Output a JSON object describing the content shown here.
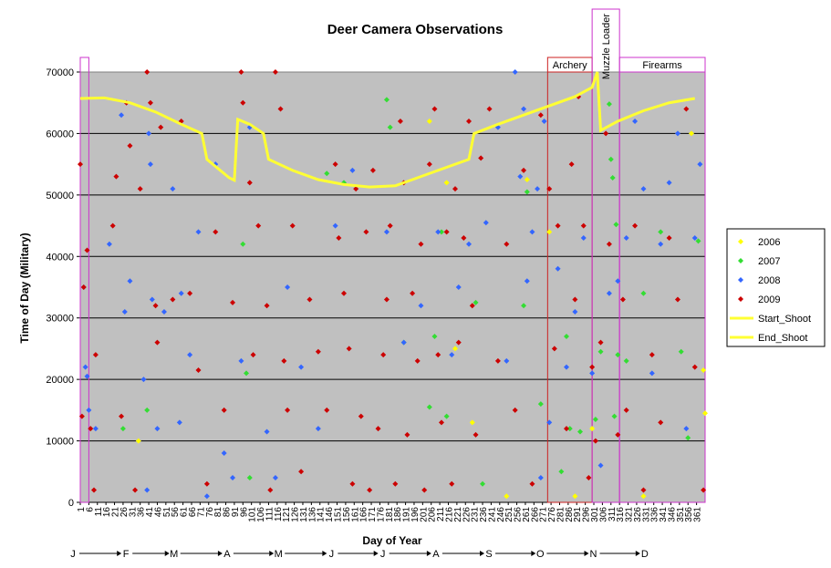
{
  "chart_data": {
    "type": "scatter",
    "title": "Deer Camera Observations",
    "xlabel": "Day of Year",
    "ylabel": "Time of Day (Military)",
    "xlim": [
      1,
      366
    ],
    "ylim": [
      0,
      70000
    ],
    "yticks": [
      0,
      10000,
      20000,
      30000,
      40000,
      50000,
      60000,
      70000
    ],
    "ytick_labels": [
      "0",
      "10000",
      "20000",
      "30000",
      "40000",
      "50000",
      "60000",
      "70000"
    ],
    "xtick_labels": [
      "1",
      "6",
      "11",
      "16",
      "21",
      "26",
      "31",
      "36",
      "41",
      "46",
      "51",
      "56",
      "61",
      "66",
      "71",
      "76",
      "81",
      "86",
      "91",
      "96",
      "101",
      "106",
      "111",
      "116",
      "121",
      "126",
      "131",
      "136",
      "141",
      "146",
      "151",
      "156",
      "161",
      "166",
      "171",
      "176",
      "181",
      "186",
      "191",
      "196",
      "201",
      "206",
      "211",
      "216",
      "221",
      "226",
      "231",
      "236",
      "241",
      "246",
      "251",
      "256",
      "261",
      "266",
      "271",
      "276",
      "281",
      "286",
      "291",
      "296",
      "301",
      "306",
      "311",
      "316",
      "321",
      "326",
      "331",
      "336",
      "341",
      "346",
      "351",
      "356",
      "361"
    ],
    "grid": "horizontal",
    "plot_background": "#c0c0c0",
    "legend_position": "right",
    "months": [
      {
        "label": "J",
        "day": 1
      },
      {
        "label": "F",
        "day": 32
      },
      {
        "label": "M",
        "day": 60
      },
      {
        "label": "A",
        "day": 91
      },
      {
        "label": "M",
        "day": 121
      },
      {
        "label": "J",
        "day": 152
      },
      {
        "label": "J",
        "day": 182
      },
      {
        "label": "A",
        "day": 213
      },
      {
        "label": "S",
        "day": 244
      },
      {
        "label": "O",
        "day": 274
      },
      {
        "label": "N",
        "day": 305
      },
      {
        "label": "D",
        "day": 335
      }
    ],
    "seasons": [
      {
        "label": "",
        "start": 1,
        "end": 6,
        "color": "#cc33cc"
      },
      {
        "label": "Archery",
        "start": 274,
        "end": 300,
        "color": "#cc2222"
      },
      {
        "label": "Muzzle Loader",
        "start": 300,
        "end": 316,
        "color": "#cc33cc",
        "vertical": true
      },
      {
        "label": "Firearms",
        "start": 316,
        "end": 366,
        "color": "#cc33cc"
      }
    ],
    "series": [
      {
        "name": "2006",
        "color": "#ffff00",
        "marker": "diamond",
        "points": [
          [
            35,
            10000
          ],
          [
            205,
            62000
          ],
          [
            215,
            52000
          ],
          [
            220,
            25000
          ],
          [
            230,
            13000
          ],
          [
            250,
            1000
          ],
          [
            262,
            52500
          ],
          [
            275,
            44000
          ],
          [
            290,
            1000
          ],
          [
            300,
            12000
          ],
          [
            330,
            1000
          ],
          [
            358,
            60000
          ],
          [
            365,
            21500
          ],
          [
            366,
            14500
          ]
        ]
      },
      {
        "name": "2007",
        "color": "#33dd33",
        "marker": "diamond",
        "points": [
          [
            26,
            12000
          ],
          [
            40,
            15000
          ],
          [
            96,
            42000
          ],
          [
            98,
            21000
          ],
          [
            100,
            4000
          ],
          [
            145,
            53500
          ],
          [
            155,
            52000
          ],
          [
            180,
            65500
          ],
          [
            182,
            61000
          ],
          [
            190,
            26000
          ],
          [
            205,
            15500
          ],
          [
            208,
            27000
          ],
          [
            212,
            44000
          ],
          [
            215,
            14000
          ],
          [
            232,
            32500
          ],
          [
            236,
            3000
          ],
          [
            260,
            32000
          ],
          [
            262,
            50500
          ],
          [
            270,
            16000
          ],
          [
            282,
            5000
          ],
          [
            285,
            27000
          ],
          [
            287,
            12000
          ],
          [
            293,
            11500
          ],
          [
            302,
            13500
          ],
          [
            305,
            24500
          ],
          [
            310,
            64800
          ],
          [
            311,
            55800
          ],
          [
            312,
            52800
          ],
          [
            313,
            14000
          ],
          [
            314,
            45200
          ],
          [
            315,
            24000
          ],
          [
            320,
            23000
          ],
          [
            330,
            34000
          ],
          [
            340,
            44000
          ],
          [
            352,
            24500
          ],
          [
            356,
            10500
          ],
          [
            362,
            42500
          ]
        ]
      },
      {
        "name": "2008",
        "color": "#3366ff",
        "marker": "diamond",
        "points": [
          [
            3,
            35000
          ],
          [
            4,
            22000
          ],
          [
            5,
            20500
          ],
          [
            6,
            15000
          ],
          [
            10,
            12000
          ],
          [
            18,
            42000
          ],
          [
            25,
            63000
          ],
          [
            27,
            31000
          ],
          [
            30,
            36000
          ],
          [
            38,
            20000
          ],
          [
            40,
            2000
          ],
          [
            41,
            60000
          ],
          [
            42,
            55000
          ],
          [
            43,
            33000
          ],
          [
            46,
            12000
          ],
          [
            50,
            31000
          ],
          [
            55,
            51000
          ],
          [
            59,
            13000
          ],
          [
            60,
            34000
          ],
          [
            65,
            24000
          ],
          [
            70,
            44000
          ],
          [
            75,
            1000
          ],
          [
            80,
            55000
          ],
          [
            85,
            8000
          ],
          [
            90,
            4000
          ],
          [
            95,
            23000
          ],
          [
            100,
            61000
          ],
          [
            110,
            11500
          ],
          [
            115,
            4000
          ],
          [
            122,
            35000
          ],
          [
            130,
            22000
          ],
          [
            140,
            12000
          ],
          [
            150,
            45000
          ],
          [
            160,
            54000
          ],
          [
            180,
            44000
          ],
          [
            190,
            26000
          ],
          [
            200,
            32000
          ],
          [
            210,
            44000
          ],
          [
            218,
            24000
          ],
          [
            222,
            35000
          ],
          [
            228,
            42000
          ],
          [
            238,
            45500
          ],
          [
            245,
            61000
          ],
          [
            250,
            23000
          ],
          [
            255,
            70000
          ],
          [
            258,
            53000
          ],
          [
            260,
            64000
          ],
          [
            262,
            36000
          ],
          [
            265,
            44000
          ],
          [
            268,
            51000
          ],
          [
            270,
            4000
          ],
          [
            272,
            62000
          ],
          [
            275,
            13000
          ],
          [
            280,
            38000
          ],
          [
            285,
            22000
          ],
          [
            290,
            31000
          ],
          [
            295,
            43000
          ],
          [
            300,
            21000
          ],
          [
            305,
            6000
          ],
          [
            310,
            34000
          ],
          [
            315,
            36000
          ],
          [
            320,
            43000
          ],
          [
            325,
            62000
          ],
          [
            330,
            51000
          ],
          [
            335,
            21000
          ],
          [
            340,
            42000
          ],
          [
            345,
            52000
          ],
          [
            350,
            60000
          ],
          [
            355,
            12000
          ],
          [
            360,
            43000
          ],
          [
            363,
            55000
          ]
        ]
      },
      {
        "name": "2009",
        "color": "#cc0000",
        "marker": "diamond",
        "points": [
          [
            1,
            55000
          ],
          [
            2,
            14000
          ],
          [
            3,
            35000
          ],
          [
            5,
            41000
          ],
          [
            7,
            12000
          ],
          [
            9,
            2000
          ],
          [
            10,
            24000
          ],
          [
            20,
            45000
          ],
          [
            22,
            53000
          ],
          [
            25,
            14000
          ],
          [
            28,
            65000
          ],
          [
            30,
            58000
          ],
          [
            33,
            2000
          ],
          [
            36,
            51000
          ],
          [
            40,
            70000
          ],
          [
            42,
            65000
          ],
          [
            45,
            32000
          ],
          [
            46,
            26000
          ],
          [
            48,
            61000
          ],
          [
            55,
            33000
          ],
          [
            60,
            62000
          ],
          [
            65,
            34000
          ],
          [
            70,
            21500
          ],
          [
            75,
            3000
          ],
          [
            80,
            44000
          ],
          [
            85,
            15000
          ],
          [
            90,
            32500
          ],
          [
            95,
            70000
          ],
          [
            96,
            65000
          ],
          [
            100,
            52000
          ],
          [
            102,
            24000
          ],
          [
            105,
            45000
          ],
          [
            110,
            32000
          ],
          [
            112,
            2000
          ],
          [
            115,
            70000
          ],
          [
            118,
            64000
          ],
          [
            120,
            23000
          ],
          [
            122,
            15000
          ],
          [
            125,
            45000
          ],
          [
            130,
            5000
          ],
          [
            135,
            33000
          ],
          [
            140,
            24500
          ],
          [
            145,
            15000
          ],
          [
            150,
            55000
          ],
          [
            152,
            43000
          ],
          [
            155,
            34000
          ],
          [
            158,
            25000
          ],
          [
            160,
            3000
          ],
          [
            162,
            51000
          ],
          [
            165,
            14000
          ],
          [
            168,
            44000
          ],
          [
            170,
            2000
          ],
          [
            172,
            54000
          ],
          [
            175,
            12000
          ],
          [
            178,
            24000
          ],
          [
            180,
            33000
          ],
          [
            182,
            45000
          ],
          [
            185,
            3000
          ],
          [
            188,
            62000
          ],
          [
            190,
            52000
          ],
          [
            192,
            11000
          ],
          [
            195,
            34000
          ],
          [
            198,
            23000
          ],
          [
            200,
            42000
          ],
          [
            202,
            2000
          ],
          [
            205,
            55000
          ],
          [
            208,
            64000
          ],
          [
            210,
            24000
          ],
          [
            212,
            13000
          ],
          [
            215,
            44000
          ],
          [
            218,
            3000
          ],
          [
            220,
            51000
          ],
          [
            222,
            26000
          ],
          [
            225,
            43000
          ],
          [
            228,
            62000
          ],
          [
            230,
            32000
          ],
          [
            232,
            11000
          ],
          [
            235,
            56000
          ],
          [
            240,
            64000
          ],
          [
            245,
            23000
          ],
          [
            250,
            42000
          ],
          [
            255,
            15000
          ],
          [
            260,
            54000
          ],
          [
            265,
            3000
          ],
          [
            270,
            63000
          ],
          [
            275,
            51000
          ],
          [
            278,
            25000
          ],
          [
            280,
            45000
          ],
          [
            285,
            12000
          ],
          [
            288,
            55000
          ],
          [
            290,
            33000
          ],
          [
            292,
            66000
          ],
          [
            295,
            45000
          ],
          [
            298,
            4000
          ],
          [
            300,
            22000
          ],
          [
            302,
            10000
          ],
          [
            305,
            26000
          ],
          [
            308,
            60000
          ],
          [
            310,
            42000
          ],
          [
            315,
            11000
          ],
          [
            318,
            33000
          ],
          [
            320,
            15000
          ],
          [
            325,
            45000
          ],
          [
            330,
            2000
          ],
          [
            335,
            24000
          ],
          [
            340,
            13000
          ],
          [
            345,
            43000
          ],
          [
            350,
            33000
          ],
          [
            355,
            64000
          ],
          [
            360,
            22000
          ],
          [
            365,
            2000
          ]
        ]
      }
    ],
    "lines": [
      {
        "name": "Start_Shoot",
        "color": "#ffff33",
        "points": [
          [
            1,
            65700
          ],
          [
            15,
            65800
          ],
          [
            30,
            65000
          ],
          [
            45,
            63500
          ],
          [
            60,
            61500
          ],
          [
            72,
            60000
          ],
          [
            75,
            55800
          ],
          [
            88,
            52800
          ],
          [
            91,
            52400
          ],
          [
            93,
            62300
          ],
          [
            100,
            61500
          ],
          [
            108,
            60000
          ],
          [
            111,
            55800
          ],
          [
            125,
            54000
          ],
          [
            140,
            52500
          ],
          [
            155,
            51700
          ],
          [
            170,
            51300
          ],
          [
            185,
            51500
          ],
          [
            200,
            53000
          ],
          [
            215,
            54500
          ],
          [
            228,
            55800
          ],
          [
            231,
            60000
          ],
          [
            245,
            61500
          ],
          [
            260,
            63000
          ],
          [
            275,
            64500
          ],
          [
            290,
            66000
          ],
          [
            300,
            67500
          ],
          [
            303,
            70000
          ],
          [
            305,
            60500
          ],
          [
            315,
            62000
          ],
          [
            330,
            63700
          ],
          [
            345,
            65000
          ],
          [
            360,
            65700
          ]
        ]
      },
      {
        "name": "End_Shoot",
        "color": "#ffff33",
        "points": []
      }
    ]
  },
  "legend": [
    {
      "label": "2006",
      "color": "#ffff00",
      "kind": "marker"
    },
    {
      "label": "2007",
      "color": "#33dd33",
      "kind": "marker"
    },
    {
      "label": "2008",
      "color": "#3366ff",
      "kind": "marker"
    },
    {
      "label": "2009",
      "color": "#cc0000",
      "kind": "marker"
    },
    {
      "label": "Start_Shoot",
      "color": "#ffff33",
      "kind": "line"
    },
    {
      "label": "End_Shoot",
      "color": "#ffff33",
      "kind": "line"
    }
  ]
}
